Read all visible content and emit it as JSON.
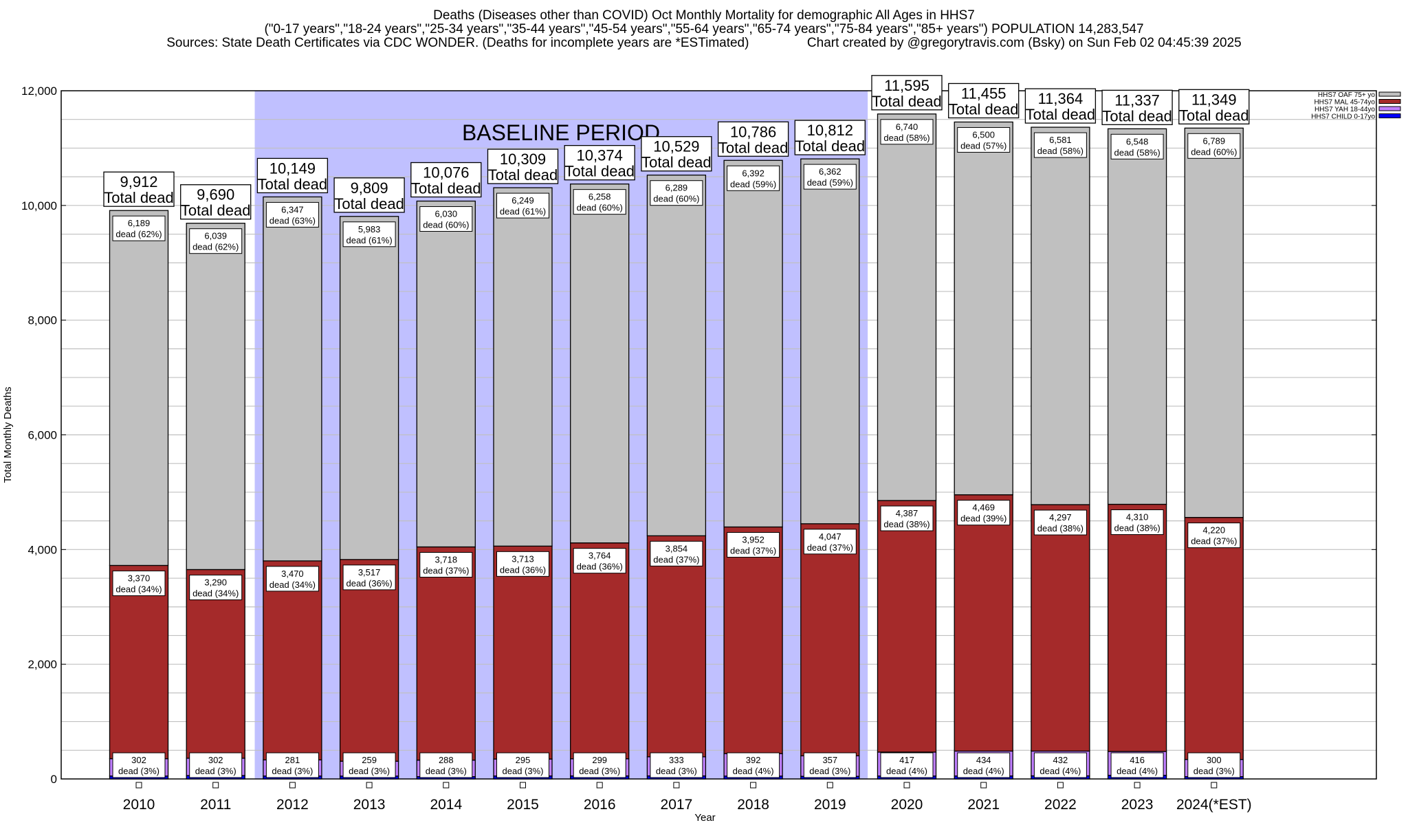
{
  "chart_data": {
    "type": "stacked-bar",
    "title": [
      "Deaths (Diseases other than COVID) Oct Monthly Mortality for demographic All Ages in HHS7",
      "(\"0-17 years\",\"18-24 years\",\"25-34 years\",\"35-44 years\",\"45-54 years\",\"55-64 years\",\"65-74 years\",\"75-84 years\",\"85+ years\") POPULATION 14,283,547",
      "Sources: State Death Certificates via CDC WONDER. (Deaths for incomplete years are *ESTimated)                Chart created by @gregorytravis.com (Bsky) on Sun Feb 02 04:45:39 2025"
    ],
    "xlabel": "Year",
    "ylabel": "Total Monthly Deaths",
    "ylim": [
      0,
      12000
    ],
    "yticks": [
      "0",
      "2,000",
      "4,000",
      "6,000",
      "8,000",
      "10,000",
      "12,000"
    ],
    "grid": true,
    "legend_position": "top-right",
    "annotation": "BASELINE PERIOD",
    "baseline_period": [
      "2012",
      "2019"
    ],
    "baseline_color": "#c0c0ff",
    "total_suffix": "Total dead",
    "categories": [
      "2010",
      "2011",
      "2012",
      "2013",
      "2014",
      "2015",
      "2016",
      "2017",
      "2018",
      "2019",
      "2020",
      "2021",
      "2022",
      "2023",
      "2024(*EST)"
    ],
    "totals": [
      "9,912",
      "9,690",
      "10,149",
      "9,809",
      "10,076",
      "10,309",
      "10,374",
      "10,529",
      "10,786",
      "10,812",
      "11,595",
      "11,455",
      "11,364",
      "11,337",
      "11,349"
    ],
    "series": [
      {
        "name": "HHS7 CHILD 0-17yo",
        "color": "#0000ff",
        "values": [
          51,
          59,
          51,
          50,
          40,
          52,
          53,
          53,
          50,
          46,
          51,
          52,
          54,
          63,
          40
        ],
        "labels": []
      },
      {
        "name": "HHS7 YAH 18-44yo",
        "color": "#c080ff",
        "values": [
          302,
          302,
          281,
          259,
          288,
          295,
          299,
          333,
          392,
          357,
          417,
          434,
          432,
          416,
          300
        ],
        "labels": [
          "302",
          "302",
          "281",
          "259",
          "288",
          "295",
          "299",
          "333",
          "392",
          "357",
          "417",
          "434",
          "432",
          "416",
          "300"
        ],
        "pct": [
          "dead (3%)",
          "dead (3%)",
          "dead (3%)",
          "dead (3%)",
          "dead (3%)",
          "dead (3%)",
          "dead (3%)",
          "dead (3%)",
          "dead (4%)",
          "dead (3%)",
          "dead (4%)",
          "dead (4%)",
          "dead (4%)",
          "dead (4%)",
          "dead (3%)"
        ]
      },
      {
        "name": "HHS7 MAL 45-74yo",
        "color": "#a52a2a",
        "values": [
          3370,
          3290,
          3470,
          3517,
          3718,
          3713,
          3764,
          3854,
          3952,
          4047,
          4387,
          4469,
          4297,
          4310,
          4220
        ],
        "labels": [
          "3,370",
          "3,290",
          "3,470",
          "3,517",
          "3,718",
          "3,713",
          "3,764",
          "3,854",
          "3,952",
          "4,047",
          "4,387",
          "4,469",
          "4,297",
          "4,310",
          "4,220"
        ],
        "pct": [
          "dead (34%)",
          "dead (34%)",
          "dead (34%)",
          "dead (36%)",
          "dead (37%)",
          "dead (36%)",
          "dead (36%)",
          "dead (37%)",
          "dead (37%)",
          "dead (37%)",
          "dead (38%)",
          "dead (39%)",
          "dead (38%)",
          "dead (38%)",
          "dead (37%)"
        ]
      },
      {
        "name": "HHS7 OAF 75+ yo",
        "color": "#c0c0c0",
        "values": [
          6189,
          6039,
          6347,
          5983,
          6030,
          6249,
          6258,
          6289,
          6392,
          6362,
          6740,
          6500,
          6581,
          6548,
          6789
        ],
        "labels": [
          "6,189",
          "6,039",
          "6,347",
          "5,983",
          "6,030",
          "6,249",
          "6,258",
          "6,289",
          "6,392",
          "6,362",
          "6,740",
          "6,500",
          "6,581",
          "6,548",
          "6,789"
        ],
        "pct": [
          "dead (62%)",
          "dead (62%)",
          "dead (63%)",
          "dead (61%)",
          "dead (60%)",
          "dead (61%)",
          "dead (60%)",
          "dead (60%)",
          "dead (59%)",
          "dead (59%)",
          "dead (58%)",
          "dead (57%)",
          "dead (58%)",
          "dead (58%)",
          "dead (60%)"
        ]
      }
    ]
  }
}
